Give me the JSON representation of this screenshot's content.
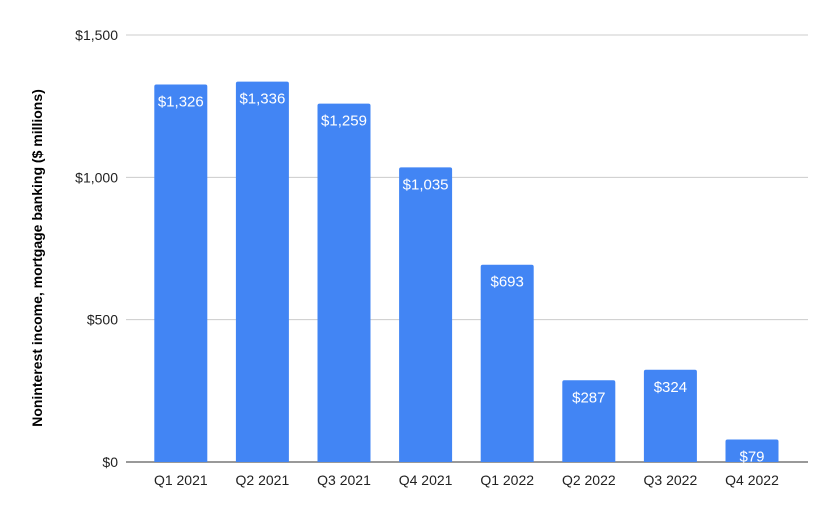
{
  "chart_data": {
    "type": "bar",
    "title": "",
    "xlabel": "",
    "ylabel": "Noninterest income, mortgage banking ($ millions)",
    "categories": [
      "Q1 2021",
      "Q2 2021",
      "Q3 2021",
      "Q4 2021",
      "Q1 2022",
      "Q2 2022",
      "Q3 2022",
      "Q4 2022"
    ],
    "values": [
      1326,
      1336,
      1259,
      1035,
      693,
      287,
      324,
      79
    ],
    "data_labels": [
      "$1,326",
      "$1,336",
      "$1,259",
      "$1,035",
      "$693",
      "$287",
      "$324",
      "$79"
    ],
    "ylim": [
      0,
      1500
    ],
    "yticks": [
      0,
      500,
      1000,
      1500
    ],
    "ytick_labels": [
      "$0",
      "$500",
      "$1,000",
      "$1,500"
    ],
    "grid": true,
    "legend": "none",
    "bar_color": "#4285F4"
  }
}
